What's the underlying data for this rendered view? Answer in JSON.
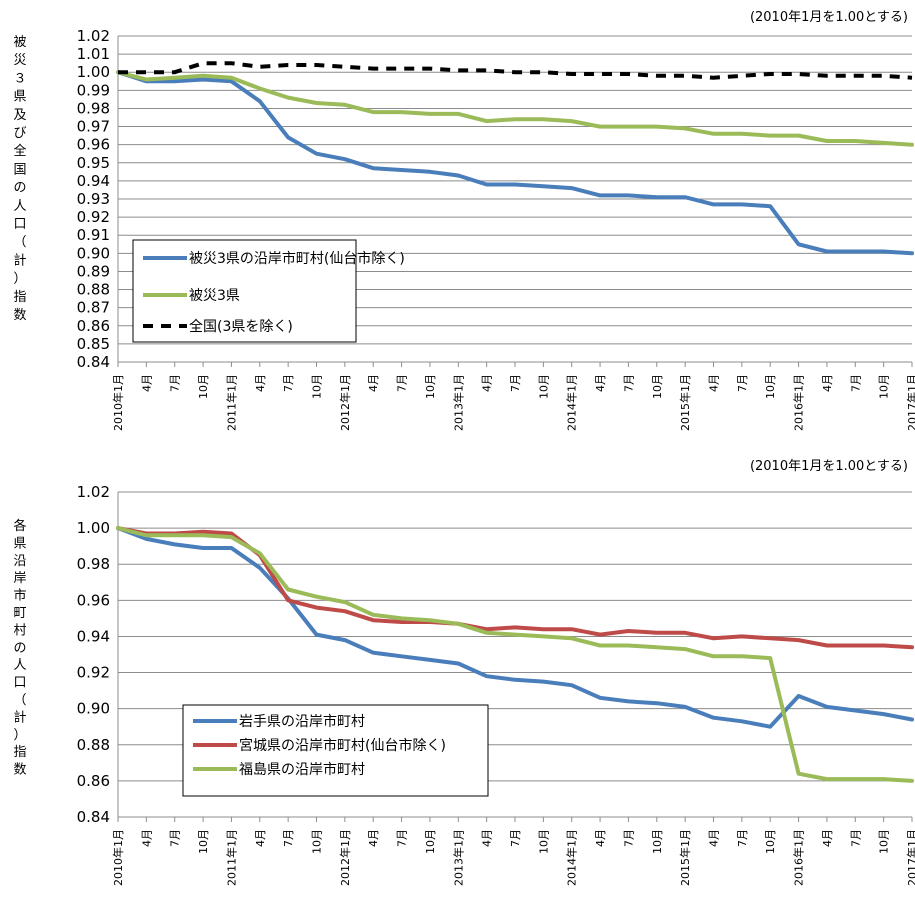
{
  "chart_data": [
    {
      "type": "line",
      "note": "(2010年1月を1.00とする)",
      "ylabel": "被災３県及び全国の人口（計）指数",
      "ylim": [
        0.84,
        1.02
      ],
      "yticks": [
        "0.84",
        "0.85",
        "0.86",
        "0.87",
        "0.88",
        "0.89",
        "0.90",
        "0.91",
        "0.92",
        "0.93",
        "0.94",
        "0.95",
        "0.96",
        "0.97",
        "0.98",
        "0.99",
        "1.00",
        "1.01",
        "1.02"
      ],
      "x": [
        "2010年1月",
        "4月",
        "7月",
        "10月",
        "2011年1月",
        "4月",
        "7月",
        "10月",
        "2012年1月",
        "4月",
        "7月",
        "10月",
        "2013年1月",
        "4月",
        "7月",
        "10月",
        "2014年1月",
        "4月",
        "7月",
        "10月",
        "2015年1月",
        "4月",
        "7月",
        "10月",
        "2016年1月",
        "4月",
        "7月",
        "10月",
        "2017年1月"
      ],
      "grid": true,
      "legend_position": "lower-left",
      "series": [
        {
          "name": "被災3県の沿岸市町村(仙台市除く)",
          "color": "#4a7ebb",
          "dash": false,
          "values": [
            1.0,
            0.995,
            0.995,
            0.996,
            0.995,
            0.984,
            0.964,
            0.955,
            0.952,
            0.947,
            0.946,
            0.945,
            0.943,
            0.938,
            0.938,
            0.937,
            0.936,
            0.932,
            0.932,
            0.931,
            0.931,
            0.927,
            0.927,
            0.926,
            0.905,
            0.901,
            0.901,
            0.901,
            0.9
          ]
        },
        {
          "name": "被災3県",
          "color": "#9bbb59",
          "dash": false,
          "values": [
            1.0,
            0.996,
            0.997,
            0.998,
            0.997,
            0.991,
            0.986,
            0.983,
            0.982,
            0.978,
            0.978,
            0.977,
            0.977,
            0.973,
            0.974,
            0.974,
            0.973,
            0.97,
            0.97,
            0.97,
            0.969,
            0.966,
            0.966,
            0.965,
            0.965,
            0.962,
            0.962,
            0.961,
            0.96
          ]
        },
        {
          "name": "全国(3県を除く)",
          "color": "#000000",
          "dash": true,
          "values": [
            1.0,
            1.0,
            1.0,
            1.005,
            1.005,
            1.003,
            1.004,
            1.004,
            1.003,
            1.002,
            1.002,
            1.002,
            1.001,
            1.001,
            1.0,
            1.0,
            0.999,
            0.999,
            0.999,
            0.998,
            0.998,
            0.997,
            0.998,
            0.999,
            0.999,
            0.998,
            0.998,
            0.998,
            0.997
          ]
        }
      ]
    },
    {
      "type": "line",
      "note": "(2010年1月を1.00とする)",
      "ylabel": "各県沿岸市町村の人口（計）指数",
      "ylim": [
        0.84,
        1.02
      ],
      "yticks": [
        "0.84",
        "0.86",
        "0.88",
        "0.90",
        "0.92",
        "0.94",
        "0.96",
        "0.98",
        "1.00",
        "1.02"
      ],
      "x": [
        "2010年1月",
        "4月",
        "7月",
        "10月",
        "2011年1月",
        "4月",
        "7月",
        "10月",
        "2012年1月",
        "4月",
        "7月",
        "10月",
        "2013年1月",
        "4月",
        "7月",
        "10月",
        "2014年1月",
        "4月",
        "7月",
        "10月",
        "2015年1月",
        "4月",
        "7月",
        "10月",
        "2016年1月",
        "4月",
        "7月",
        "10月",
        "2017年1月"
      ],
      "grid": true,
      "legend_position": "lower-left",
      "series": [
        {
          "name": "岩手県の沿岸市町村",
          "color": "#4a7ebb",
          "dash": false,
          "values": [
            1.0,
            0.994,
            0.991,
            0.989,
            0.989,
            0.978,
            0.961,
            0.941,
            0.938,
            0.931,
            0.929,
            0.927,
            0.925,
            0.918,
            0.916,
            0.915,
            0.913,
            0.906,
            0.904,
            0.903,
            0.901,
            0.895,
            0.893,
            0.89,
            0.907,
            0.901,
            0.899,
            0.897,
            0.894
          ]
        },
        {
          "name": "宮城県の沿岸市町村(仙台市除く)",
          "color": "#be4b48",
          "dash": false,
          "values": [
            1.0,
            0.997,
            0.997,
            0.998,
            0.997,
            0.985,
            0.96,
            0.956,
            0.954,
            0.949,
            0.948,
            0.948,
            0.947,
            0.944,
            0.945,
            0.944,
            0.944,
            0.941,
            0.943,
            0.942,
            0.942,
            0.939,
            0.94,
            0.939,
            0.938,
            0.935,
            0.935,
            0.935,
            0.934
          ]
        },
        {
          "name": "福島県の沿岸市町村",
          "color": "#9bbb59",
          "dash": false,
          "values": [
            1.0,
            0.996,
            0.996,
            0.996,
            0.995,
            0.986,
            0.966,
            0.962,
            0.959,
            0.952,
            0.95,
            0.949,
            0.947,
            0.942,
            0.941,
            0.94,
            0.939,
            0.935,
            0.935,
            0.934,
            0.933,
            0.929,
            0.929,
            0.928,
            0.864,
            0.861,
            0.861,
            0.861,
            0.86
          ]
        }
      ]
    }
  ]
}
